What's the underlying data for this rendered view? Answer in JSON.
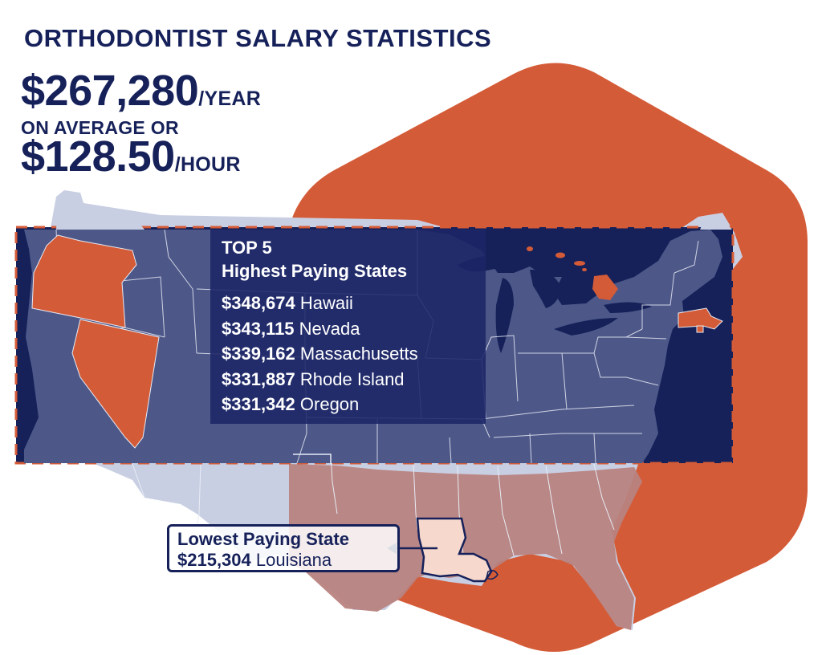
{
  "header": {
    "title": "ORTHODONTIST SALARY STATISTICS",
    "annual_value": "$267,280",
    "annual_unit": "/YEAR",
    "middle_text": "ON AVERAGE OR",
    "hourly_value": "$128.50",
    "hourly_unit": "/HOUR"
  },
  "top5": {
    "title_line1": "TOP 5",
    "title_line2": "Highest Paying States",
    "states": [
      {
        "amount": "$348,674",
        "state": "Hawaii"
      },
      {
        "amount": "$343,115",
        "state": "Nevada"
      },
      {
        "amount": "$339,162",
        "state": "Massachusetts"
      },
      {
        "amount": "$331,887",
        "state": "Rhode Island"
      },
      {
        "amount": "$331,342",
        "state": "Oregon"
      }
    ]
  },
  "lowest": {
    "title": "Lowest Paying State",
    "amount": "$215,304",
    "state": "Louisiana"
  },
  "colors": {
    "navy": "#16215a",
    "highlight_orange": "#d45b37",
    "map_state_fill": "#4d5889",
    "map_faded_fill": "#c9cfe3",
    "lowest_state_fill": "#f7d8cc"
  }
}
